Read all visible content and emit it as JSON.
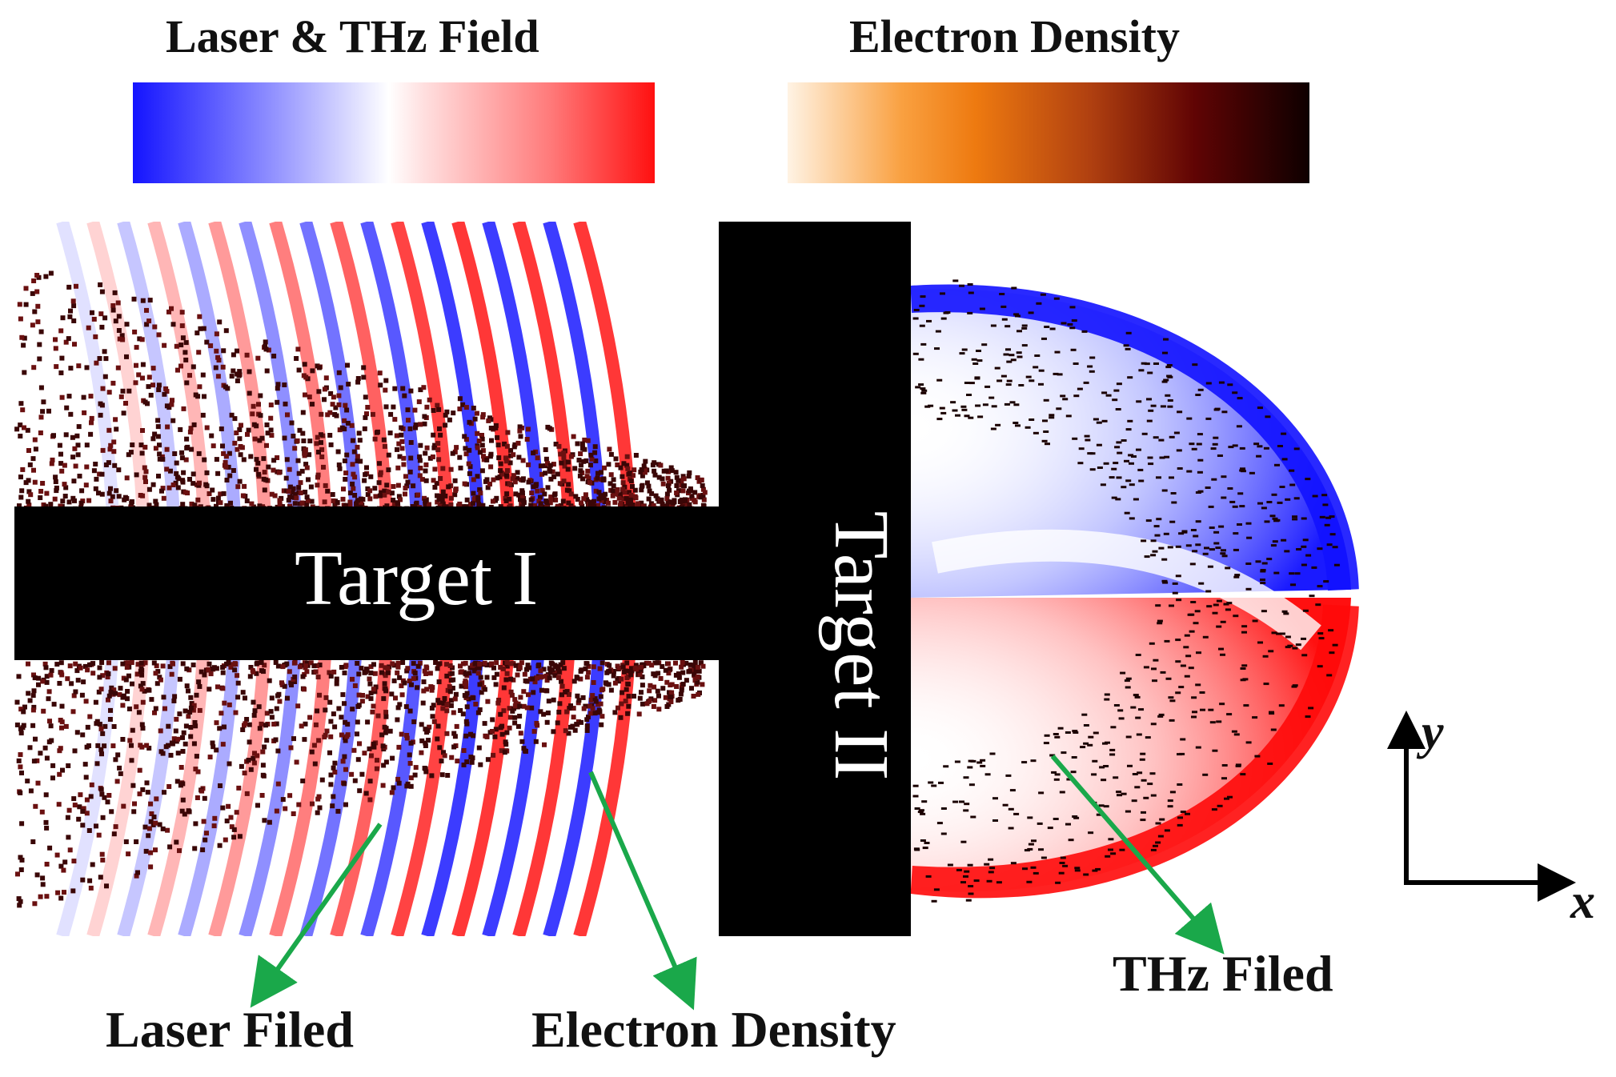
{
  "colorbars": {
    "field_title": "Laser & THz Field",
    "density_title": "Electron Density"
  },
  "targets": {
    "target1": "Target I",
    "target2": "Target II"
  },
  "annotations": {
    "laser": "Laser Filed",
    "density": "Electron Density",
    "thz": "THz Filed"
  },
  "axes": {
    "x": "x",
    "y": "y"
  },
  "colors": {
    "field_negative": "#1010ff",
    "field_zero": "#ffffff",
    "field_positive": "#ff1010",
    "density_low": "#ffffff",
    "density_mid": "#f08010",
    "density_high": "#100000",
    "arrow": "#1aa84a",
    "target": "#000000"
  }
}
